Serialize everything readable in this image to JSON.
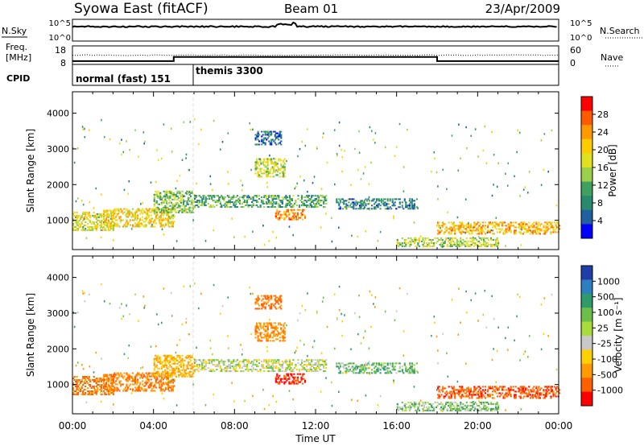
{
  "header": {
    "station": "Syowa East (fitACF)",
    "beam": "Beam 01",
    "date": "23/Apr/2009"
  },
  "nsky_panel": {
    "left_label": "N.Sky",
    "right_label": "N.Search",
    "tick_top": "10^5",
    "tick_bottom": "10^0"
  },
  "freq_panel": {
    "left_label_1": "Freq.",
    "left_label_2": "[MHz]",
    "left_tick_top": "18",
    "left_tick_bottom": "8",
    "right_label": "Nave",
    "right_tick_top": "60",
    "right_tick_bottom": "0"
  },
  "cpid_panel": {
    "label": "CPID",
    "modes": [
      "normal (fast) 151",
      "themis 3300"
    ]
  },
  "power_scale": {
    "title": "Power [dB]",
    "ticks": [
      "28",
      "24",
      "20",
      "16",
      "12",
      "8",
      "4"
    ],
    "colors": [
      "#ff0000",
      "#ff5a00",
      "#ff9900",
      "#ffcc00",
      "#e0e020",
      "#9ad04a",
      "#3fa060",
      "#2a8a70",
      "#2060a0",
      "#0000ff"
    ]
  },
  "velocity_scale": {
    "title": "Velocity [m s⁻¹]",
    "ticks": [
      "1000",
      "500",
      "100",
      "25",
      "-25",
      "-100",
      "-500",
      "-1000"
    ],
    "colors": [
      "#1f3fa8",
      "#2d7fc0",
      "#2f9a6a",
      "#6cc04a",
      "#a8dc3a",
      "#c8c8c8",
      "#ffd000",
      "#ff9a00",
      "#ff6000",
      "#ff0000"
    ]
  },
  "chart_data": {
    "type": "heatmap",
    "title": "Syowa East (fitACF)",
    "xlabel": "Time UT",
    "ylabel": "Slant Range [km]",
    "x_ticks": [
      "00:00",
      "04:00",
      "08:00",
      "12:00",
      "16:00",
      "20:00",
      "00:00"
    ],
    "xlim_hours": [
      0,
      24
    ],
    "y_ticks": [
      "1000",
      "2000",
      "3000",
      "4000"
    ],
    "ylim": [
      180,
      4600
    ],
    "panels": [
      "Power [dB]",
      "Velocity [m s⁻¹]"
    ],
    "frequency_mhz": [
      {
        "start_hour": 0,
        "end_hour": 5.0,
        "value": 9.8
      },
      {
        "start_hour": 5.0,
        "end_hour": 18.0,
        "value": 12.0
      },
      {
        "start_hour": 18.0,
        "end_hour": 24.0,
        "value": 9.8
      }
    ],
    "cpid": [
      {
        "start_hour": 0,
        "end_hour": 6.0,
        "name": "normal (fast) 151"
      },
      {
        "start_hour": 6.0,
        "end_hour": 24.0,
        "name": "themis 3300"
      }
    ],
    "nave_approx": 30,
    "scatter_regions": [
      {
        "t0": 0.0,
        "t1": 2.0,
        "r0": 700,
        "r1": 1200,
        "power": 18,
        "velocity": -300
      },
      {
        "t0": 1.5,
        "t1": 5.0,
        "r0": 800,
        "r1": 1300,
        "power": 20,
        "velocity": -250
      },
      {
        "t0": 4.0,
        "t1": 6.0,
        "r0": 1200,
        "r1": 1800,
        "power": 14,
        "velocity": -120
      },
      {
        "t0": 6.0,
        "t1": 12.5,
        "r0": 1350,
        "r1": 1700,
        "power": 12,
        "velocity": 10
      },
      {
        "t0": 9.0,
        "t1": 10.5,
        "r0": 2200,
        "r1": 2700,
        "power": 17,
        "velocity": -200
      },
      {
        "t0": 9.0,
        "t1": 10.3,
        "r0": 3100,
        "r1": 3500,
        "power": 8,
        "velocity": -300
      },
      {
        "t0": 10.0,
        "t1": 11.5,
        "r0": 1000,
        "r1": 1300,
        "power": 24,
        "velocity": -600
      },
      {
        "t0": 13.0,
        "t1": 17.0,
        "r0": 1300,
        "r1": 1600,
        "power": 9,
        "velocity": 80
      },
      {
        "t0": 16.0,
        "t1": 21.0,
        "r0": 250,
        "r1": 500,
        "power": 16,
        "velocity": 60
      },
      {
        "t0": 18.0,
        "t1": 24.0,
        "r0": 600,
        "r1": 950,
        "power": 22,
        "velocity": -400
      }
    ]
  }
}
